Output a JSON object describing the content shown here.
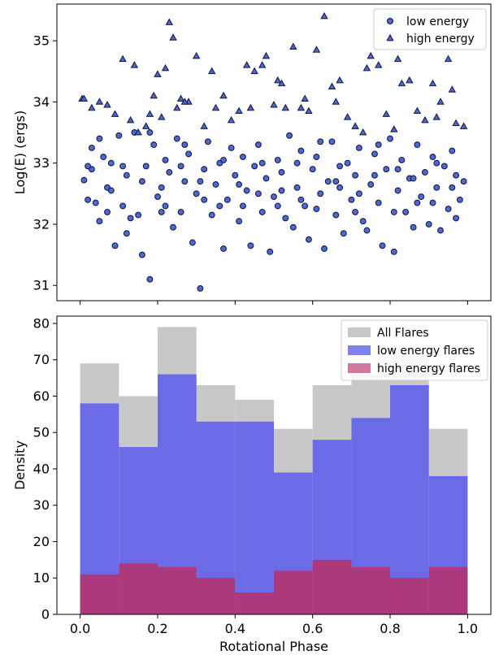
{
  "chart_data": [
    {
      "type": "scatter",
      "ylabel": "Log(E) (ergs)",
      "xlabel": "",
      "xlim": [
        -0.06,
        1.06
      ],
      "ylim": [
        30.75,
        35.6
      ],
      "yticks": [
        31,
        32,
        33,
        34,
        35
      ],
      "xticks": [
        0.0,
        0.2,
        0.4,
        0.6,
        0.8,
        1.0
      ],
      "show_xtick_labels": false,
      "legend": "top-right",
      "series": [
        {
          "name": "low energy",
          "marker": "circle",
          "color": "#4a6bd6",
          "edge": "#1a1a40",
          "points": [
            [
              0.01,
              32.72
            ],
            [
              0.02,
              32.4
            ],
            [
              0.03,
              33.25
            ],
            [
              0.03,
              32.9
            ],
            [
              0.04,
              32.35
            ],
            [
              0.05,
              32.05
            ],
            [
              0.06,
              33.1
            ],
            [
              0.07,
              32.6
            ],
            [
              0.08,
              33.0
            ],
            [
              0.09,
              31.65
            ],
            [
              0.1,
              33.45
            ],
            [
              0.11,
              32.3
            ],
            [
              0.12,
              31.85
            ],
            [
              0.12,
              32.8
            ],
            [
              0.14,
              33.5
            ],
            [
              0.15,
              32.15
            ],
            [
              0.16,
              31.5
            ],
            [
              0.17,
              32.95
            ],
            [
              0.18,
              31.1
            ],
            [
              0.19,
              33.3
            ],
            [
              0.2,
              32.45
            ],
            [
              0.21,
              32.6
            ],
            [
              0.22,
              33.05
            ],
            [
              0.23,
              32.85
            ],
            [
              0.24,
              31.95
            ],
            [
              0.25,
              33.4
            ],
            [
              0.26,
              32.2
            ],
            [
              0.27,
              32.7
            ],
            [
              0.28,
              33.15
            ],
            [
              0.29,
              31.7
            ],
            [
              0.3,
              32.5
            ],
            [
              0.31,
              30.95
            ],
            [
              0.32,
              32.9
            ],
            [
              0.33,
              33.35
            ],
            [
              0.34,
              32.15
            ],
            [
              0.35,
              32.65
            ],
            [
              0.36,
              33.0
            ],
            [
              0.37,
              31.6
            ],
            [
              0.38,
              32.4
            ],
            [
              0.39,
              33.25
            ],
            [
              0.4,
              32.8
            ],
            [
              0.41,
              32.05
            ],
            [
              0.42,
              33.1
            ],
            [
              0.43,
              32.55
            ],
            [
              0.44,
              31.65
            ],
            [
              0.45,
              32.95
            ],
            [
              0.46,
              33.3
            ],
            [
              0.47,
              32.2
            ],
            [
              0.48,
              32.75
            ],
            [
              0.49,
              31.55
            ],
            [
              0.5,
              32.45
            ],
            [
              0.51,
              33.05
            ],
            [
              0.52,
              32.85
            ],
            [
              0.53,
              32.1
            ],
            [
              0.54,
              33.45
            ],
            [
              0.55,
              31.95
            ],
            [
              0.56,
              32.6
            ],
            [
              0.57,
              33.2
            ],
            [
              0.58,
              32.3
            ],
            [
              0.59,
              31.75
            ],
            [
              0.6,
              32.9
            ],
            [
              0.61,
              33.1
            ],
            [
              0.62,
              32.5
            ],
            [
              0.63,
              31.6
            ],
            [
              0.64,
              32.7
            ],
            [
              0.65,
              33.35
            ],
            [
              0.66,
              32.15
            ],
            [
              0.67,
              32.95
            ],
            [
              0.68,
              31.85
            ],
            [
              0.69,
              33.0
            ],
            [
              0.7,
              32.4
            ],
            [
              0.71,
              32.8
            ],
            [
              0.72,
              33.25
            ],
            [
              0.73,
              32.05
            ],
            [
              0.74,
              31.9
            ],
            [
              0.75,
              32.65
            ],
            [
              0.76,
              33.15
            ],
            [
              0.77,
              32.35
            ],
            [
              0.78,
              31.65
            ],
            [
              0.79,
              32.9
            ],
            [
              0.8,
              33.4
            ],
            [
              0.81,
              31.55
            ],
            [
              0.82,
              32.55
            ],
            [
              0.83,
              33.05
            ],
            [
              0.84,
              32.2
            ],
            [
              0.85,
              32.75
            ],
            [
              0.86,
              31.95
            ],
            [
              0.87,
              33.3
            ],
            [
              0.88,
              32.45
            ],
            [
              0.89,
              32.85
            ],
            [
              0.9,
              32.0
            ],
            [
              0.91,
              33.1
            ],
            [
              0.92,
              32.6
            ],
            [
              0.93,
              31.9
            ],
            [
              0.94,
              32.95
            ],
            [
              0.95,
              32.25
            ],
            [
              0.96,
              33.2
            ],
            [
              0.97,
              32.8
            ],
            [
              0.98,
              32.4
            ],
            [
              0.99,
              32.7
            ],
            [
              0.05,
              33.4
            ],
            [
              0.08,
              32.55
            ],
            [
              0.13,
              32.1
            ],
            [
              0.18,
              33.5
            ],
            [
              0.22,
              32.3
            ],
            [
              0.27,
              33.3
            ],
            [
              0.32,
              32.4
            ],
            [
              0.37,
              33.05
            ],
            [
              0.42,
              32.3
            ],
            [
              0.47,
              33.0
            ],
            [
              0.52,
              32.55
            ],
            [
              0.57,
              32.4
            ],
            [
              0.62,
              33.35
            ],
            [
              0.67,
              32.6
            ],
            [
              0.72,
              32.5
            ],
            [
              0.77,
              33.3
            ],
            [
              0.82,
              32.9
            ],
            [
              0.87,
              32.35
            ],
            [
              0.92,
              33.0
            ],
            [
              0.97,
              32.1
            ],
            [
              0.02,
              32.95
            ],
            [
              0.07,
              32.2
            ],
            [
              0.11,
              32.95
            ],
            [
              0.16,
              32.7
            ],
            [
              0.21,
              32.2
            ],
            [
              0.26,
              32.95
            ],
            [
              0.31,
              32.7
            ],
            [
              0.36,
              32.3
            ],
            [
              0.41,
              32.65
            ],
            [
              0.46,
              32.5
            ],
            [
              0.51,
              32.3
            ],
            [
              0.56,
              33.0
            ],
            [
              0.61,
              32.25
            ],
            [
              0.66,
              32.7
            ],
            [
              0.71,
              32.2
            ],
            [
              0.76,
              32.8
            ],
            [
              0.81,
              32.2
            ],
            [
              0.86,
              32.75
            ],
            [
              0.91,
              32.35
            ],
            [
              0.96,
              32.6
            ]
          ]
        },
        {
          "name": "high energy",
          "marker": "triangle",
          "color": "#4a6bd6",
          "edge": "#1a1a40",
          "points": [
            [
              0.005,
              34.05
            ],
            [
              0.01,
              34.05
            ],
            [
              0.03,
              33.9
            ],
            [
              0.05,
              34.0
            ],
            [
              0.07,
              33.95
            ],
            [
              0.09,
              33.8
            ],
            [
              0.11,
              34.7
            ],
            [
              0.13,
              33.7
            ],
            [
              0.15,
              33.5
            ],
            [
              0.17,
              33.6
            ],
            [
              0.19,
              34.1
            ],
            [
              0.2,
              34.45
            ],
            [
              0.21,
              33.75
            ],
            [
              0.22,
              34.55
            ],
            [
              0.23,
              35.3
            ],
            [
              0.24,
              35.05
            ],
            [
              0.25,
              33.9
            ],
            [
              0.26,
              34.05
            ],
            [
              0.28,
              34.0
            ],
            [
              0.3,
              34.75
            ],
            [
              0.32,
              33.6
            ],
            [
              0.35,
              33.9
            ],
            [
              0.37,
              34.1
            ],
            [
              0.39,
              33.7
            ],
            [
              0.41,
              33.85
            ],
            [
              0.43,
              34.6
            ],
            [
              0.45,
              34.5
            ],
            [
              0.47,
              34.6
            ],
            [
              0.48,
              34.75
            ],
            [
              0.5,
              33.95
            ],
            [
              0.51,
              34.35
            ],
            [
              0.53,
              33.9
            ],
            [
              0.55,
              34.9
            ],
            [
              0.57,
              33.9
            ],
            [
              0.59,
              33.85
            ],
            [
              0.61,
              34.85
            ],
            [
              0.63,
              35.4
            ],
            [
              0.65,
              34.25
            ],
            [
              0.67,
              34.35
            ],
            [
              0.69,
              33.75
            ],
            [
              0.71,
              33.6
            ],
            [
              0.73,
              33.5
            ],
            [
              0.75,
              34.75
            ],
            [
              0.77,
              34.6
            ],
            [
              0.79,
              33.8
            ],
            [
              0.81,
              33.55
            ],
            [
              0.83,
              34.3
            ],
            [
              0.85,
              34.35
            ],
            [
              0.87,
              33.85
            ],
            [
              0.89,
              33.7
            ],
            [
              0.91,
              34.3
            ],
            [
              0.93,
              34.0
            ],
            [
              0.95,
              34.7
            ],
            [
              0.97,
              33.65
            ],
            [
              0.99,
              33.6
            ],
            [
              0.14,
              34.6
            ],
            [
              0.18,
              33.8
            ],
            [
              0.27,
              34.0
            ],
            [
              0.34,
              34.5
            ],
            [
              0.44,
              33.9
            ],
            [
              0.52,
              34.3
            ],
            [
              0.58,
              34.05
            ],
            [
              0.66,
              34.0
            ],
            [
              0.74,
              34.55
            ],
            [
              0.82,
              34.7
            ],
            [
              0.92,
              33.75
            ],
            [
              0.96,
              34.2
            ]
          ]
        }
      ]
    },
    {
      "type": "bar",
      "xlabel": "Rotational Phase",
      "ylabel": "Density",
      "xlim": [
        -0.06,
        1.06
      ],
      "ylim": [
        0,
        82
      ],
      "xticks": [
        0.0,
        0.2,
        0.4,
        0.6,
        0.8,
        1.0
      ],
      "xtick_labels": [
        "0.0",
        "0.2",
        "0.4",
        "0.6",
        "0.8",
        "1.0"
      ],
      "yticks": [
        0,
        10,
        20,
        30,
        40,
        50,
        60,
        70,
        80
      ],
      "legend": "top-right",
      "bin_edges": [
        0.0,
        0.1,
        0.2,
        0.3,
        0.4,
        0.5,
        0.6,
        0.7,
        0.8,
        0.9,
        1.0
      ],
      "series": [
        {
          "name": "All Flares",
          "color": "#c8c8c8",
          "values": [
            69,
            60,
            79,
            63,
            59,
            51,
            63,
            66,
            71,
            51
          ]
        },
        {
          "name": "low energy flares",
          "color": "#6b6be8",
          "values": [
            58,
            46,
            66,
            53,
            53,
            39,
            48,
            54,
            63,
            38
          ]
        },
        {
          "name": "high energy flares",
          "color": "#b8306a",
          "values": [
            11,
            14,
            13,
            10,
            6,
            12,
            15,
            13,
            10,
            13
          ]
        }
      ]
    }
  ]
}
